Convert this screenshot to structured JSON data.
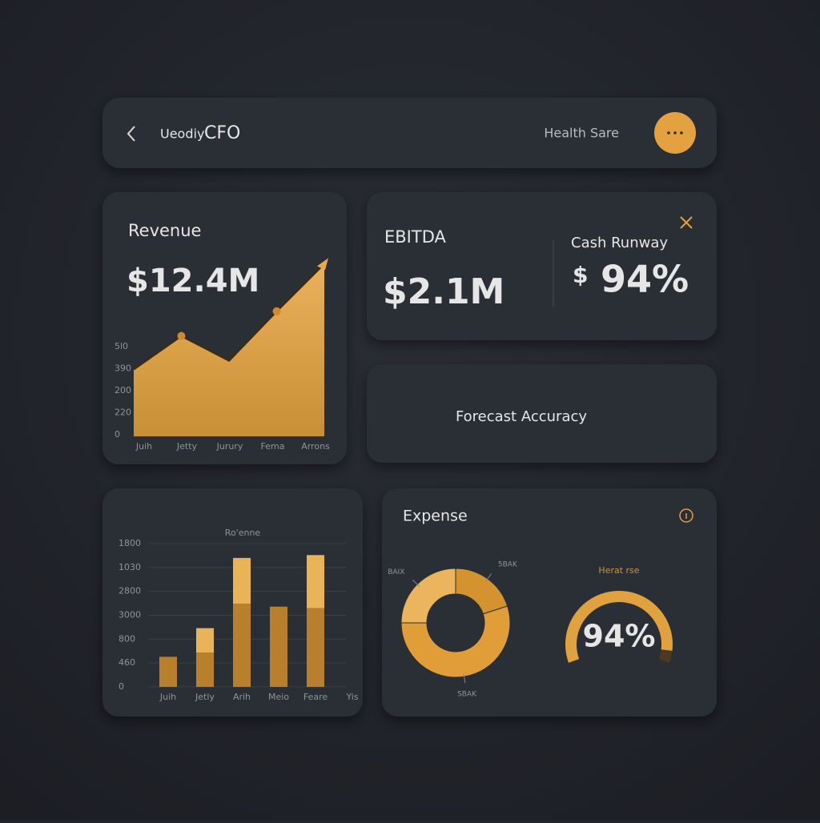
{
  "header": {
    "title_prefix": "Ueodiy",
    "title": "CFO",
    "status": "Health Sare"
  },
  "revenue": {
    "title": "Revenue",
    "value": "$12.4M",
    "chart": {
      "type": "area",
      "y_labels": [
        "5l0",
        "390",
        "200",
        "220",
        "0"
      ],
      "categories": [
        "Juih",
        "Jetty",
        "Jurury",
        "Fema",
        "Arrons"
      ],
      "values": [
        38,
        57,
        43,
        71,
        98
      ],
      "ylim": [
        0,
        100
      ],
      "color": "#e8a84a"
    }
  },
  "ebitda": {
    "title": "EBITDA",
    "value": "$2.1M"
  },
  "cash_runway": {
    "title": "Cash Runway",
    "currency": "$",
    "value": "94%"
  },
  "forecast": {
    "title": "Forecast Accuracy"
  },
  "bars": {
    "title": "Ro'enne",
    "chart": {
      "type": "bar",
      "y_labels": [
        "1800",
        "1030",
        "2800",
        "3000",
        "800",
        "460",
        "0"
      ],
      "categories": [
        "Juih",
        "Jetly",
        "Arih",
        "Meio",
        "Feare",
        "Yis"
      ],
      "series": [
        {
          "color": "#b8802c",
          "values": [
            21,
            24,
            58,
            56,
            55,
            null
          ]
        },
        {
          "color": "#e9b458",
          "values": [
            0,
            17,
            32,
            0,
            37,
            null
          ]
        }
      ],
      "ylim": [
        0,
        100
      ]
    }
  },
  "expense": {
    "title": "Expense",
    "donut": {
      "type": "pie",
      "labels": [
        "BAIX",
        "5BAK",
        "SBAK"
      ],
      "values": [
        25,
        20,
        55
      ],
      "colors": [
        "#eab55c",
        "#d4932f",
        "#e19d37"
      ]
    },
    "gauge": {
      "type": "gauge",
      "title": "Herat rse",
      "value": 94,
      "value_label": "94%",
      "ylim": [
        0,
        100
      ],
      "color": "#e0a13f"
    }
  }
}
